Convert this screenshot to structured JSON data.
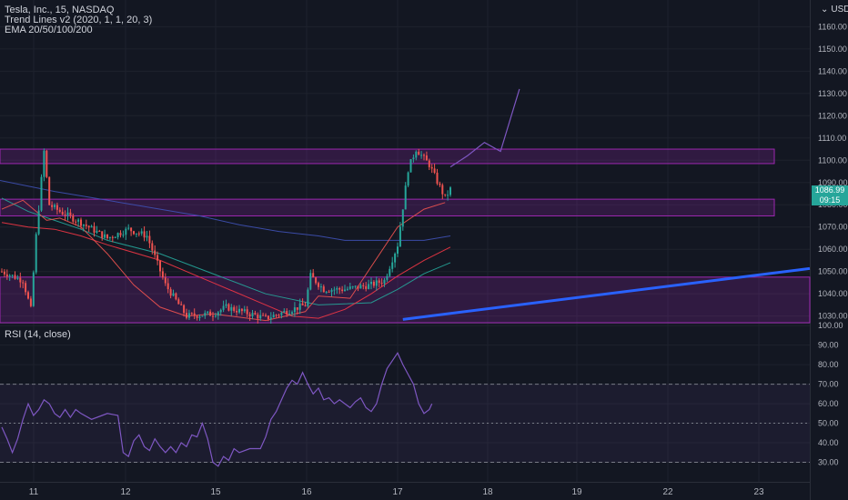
{
  "legend": {
    "symbol_line": "Tesla, Inc., 15, NASDAQ",
    "indicator1": "Trend Lines v2 (2020, 1, 1, 20, 3)",
    "indicator2": "EMA 20/50/100/200"
  },
  "currency": "USD",
  "last_price": {
    "price": "1086.99",
    "countdown": "09:15"
  },
  "rsi_label": "RSI (14, close)",
  "colors": {
    "background": "#131722",
    "grid": "#1e222d",
    "up": "#26a69a",
    "down": "#ef5350",
    "zone": "#9c27b0",
    "trendline": "#2962ff",
    "projection": "#7e57c2",
    "ema20": "#ef5350",
    "ema50": "#f23645",
    "ema100": "#26a69a",
    "ema200": "#3f51b5",
    "rsi": "#7e57c2"
  },
  "chart_data": [
    {
      "type": "candlestick",
      "title": "Tesla, Inc., 15, NASDAQ",
      "price_ticks": [
        1030,
        1040,
        1050,
        1060,
        1070,
        1080,
        1090,
        1100,
        1110,
        1120,
        1130,
        1140,
        1150,
        1160
      ],
      "price_tick_labels": [
        "1030.00",
        "1040.00",
        "1050.00",
        "1060.00",
        "1070.00",
        "1080.00",
        "1090.00",
        "1100.00",
        "1110.00",
        "1120.00",
        "1130.00",
        "1140.00",
        "1150.00",
        "1160.00"
      ],
      "ylim": [
        1027,
        1172
      ],
      "x_tick_labels": [
        "11",
        "12",
        "15",
        "16",
        "17",
        "18",
        "19",
        "22",
        "23"
      ],
      "last_price": 1086.99,
      "zones": [
        {
          "low": 1098.5,
          "high": 1105
        },
        {
          "low": 1075,
          "high": 1082.5
        },
        {
          "low": 1027,
          "high": 1047.5
        }
      ],
      "projection": [
        [
          0,
          1097
        ],
        [
          18,
          1102
        ],
        [
          36,
          1108
        ],
        [
          53,
          1104
        ],
        [
          73,
          1132
        ]
      ],
      "trendline": {
        "start_index": 152,
        "start_price": 1028.5,
        "end_slope_per_bar": 0.1483
      },
      "ema_series": [
        {
          "key": "ema200",
          "points": [
            [
              -1,
              1091
            ],
            [
              20,
              1086
            ],
            [
              40,
              1082
            ],
            [
              60,
              1078
            ],
            [
              75,
              1075
            ],
            [
              90,
              1071
            ],
            [
              105,
              1068
            ],
            [
              120,
              1066
            ],
            [
              130,
              1064
            ],
            [
              140,
              1064
            ],
            [
              150,
              1064
            ],
            [
              160,
              1064
            ],
            [
              170,
              1066
            ]
          ]
        },
        {
          "key": "ema100",
          "points": [
            [
              0,
              1083
            ],
            [
              10,
              1077
            ],
            [
              20,
              1073
            ],
            [
              30,
              1069
            ],
            [
              40,
              1064
            ],
            [
              60,
              1058
            ],
            [
              80,
              1049
            ],
            [
              100,
              1040
            ],
            [
              120,
              1035
            ],
            [
              140,
              1036
            ],
            [
              150,
              1042
            ],
            [
              160,
              1049
            ],
            [
              170,
              1054
            ]
          ]
        },
        {
          "key": "ema50",
          "points": [
            [
              0,
              1072
            ],
            [
              10,
              1070
            ],
            [
              20,
              1069
            ],
            [
              30,
              1066
            ],
            [
              40,
              1062
            ],
            [
              60,
              1055
            ],
            [
              80,
              1045
            ],
            [
              100,
              1035
            ],
            [
              110,
              1030
            ],
            [
              120,
              1029
            ],
            [
              130,
              1033
            ],
            [
              140,
              1040
            ],
            [
              150,
              1048
            ],
            [
              160,
              1055
            ],
            [
              170,
              1061
            ]
          ]
        },
        {
          "key": "ema20",
          "points": [
            [
              0,
              1078
            ],
            [
              8,
              1082
            ],
            [
              17,
              1073
            ],
            [
              22,
              1074
            ],
            [
              30,
              1070
            ],
            [
              40,
              1058
            ],
            [
              50,
              1044
            ],
            [
              60,
              1034
            ],
            [
              70,
              1030
            ],
            [
              80,
              1031
            ],
            [
              100,
              1028
            ],
            [
              115,
              1032
            ],
            [
              120,
              1039
            ],
            [
              132,
              1038
            ],
            [
              150,
              1070
            ],
            [
              160,
              1078
            ],
            [
              168,
              1081
            ]
          ]
        }
      ],
      "candle_path": [
        [
          0,
          1050
        ],
        [
          8,
          1046
        ],
        [
          11,
          1033
        ],
        [
          13,
          1066
        ],
        [
          16,
          1104
        ],
        [
          18,
          1080
        ],
        [
          22,
          1077
        ],
        [
          30,
          1072
        ],
        [
          40,
          1065
        ],
        [
          48,
          1069
        ],
        [
          55,
          1066
        ],
        [
          62,
          1044
        ],
        [
          70,
          1030
        ],
        [
          80,
          1031
        ],
        [
          85,
          1034
        ],
        [
          100,
          1029
        ],
        [
          115,
          1035
        ],
        [
          117,
          1048
        ],
        [
          122,
          1042
        ],
        [
          130,
          1042
        ],
        [
          140,
          1044
        ],
        [
          145,
          1046
        ],
        [
          150,
          1062
        ],
        [
          154,
          1096
        ],
        [
          157,
          1105
        ],
        [
          162,
          1098
        ],
        [
          168,
          1083
        ],
        [
          170,
          1087
        ]
      ]
    },
    {
      "type": "line",
      "title": "RSI (14, close)",
      "ticks": [
        30,
        40,
        50,
        60,
        70,
        80,
        90,
        100
      ],
      "tick_labels": [
        "30.00",
        "40.00",
        "50.00",
        "60.00",
        "70.00",
        "80.00",
        "90.00",
        "100.00"
      ],
      "ylim": [
        20,
        101
      ],
      "bands": [
        30,
        50,
        70
      ],
      "points": [
        [
          0,
          48
        ],
        [
          2,
          42
        ],
        [
          4,
          35
        ],
        [
          6,
          42
        ],
        [
          8,
          52
        ],
        [
          10,
          60
        ],
        [
          12,
          54
        ],
        [
          14,
          57
        ],
        [
          16,
          62
        ],
        [
          18,
          60
        ],
        [
          20,
          55
        ],
        [
          22,
          53
        ],
        [
          24,
          57
        ],
        [
          26,
          53
        ],
        [
          28,
          57
        ],
        [
          30,
          55
        ],
        [
          34,
          52
        ],
        [
          38,
          54
        ],
        [
          40,
          55
        ],
        [
          44,
          54
        ],
        [
          46,
          35
        ],
        [
          48,
          33
        ],
        [
          50,
          41
        ],
        [
          52,
          44
        ],
        [
          54,
          38
        ],
        [
          56,
          36
        ],
        [
          58,
          42
        ],
        [
          60,
          38
        ],
        [
          62,
          35
        ],
        [
          64,
          38
        ],
        [
          66,
          35
        ],
        [
          68,
          40
        ],
        [
          70,
          38
        ],
        [
          72,
          44
        ],
        [
          74,
          43
        ],
        [
          76,
          50
        ],
        [
          78,
          42
        ],
        [
          80,
          30
        ],
        [
          82,
          28
        ],
        [
          84,
          33
        ],
        [
          86,
          31
        ],
        [
          88,
          37
        ],
        [
          90,
          35
        ],
        [
          94,
          37
        ],
        [
          98,
          37
        ],
        [
          100,
          43
        ],
        [
          102,
          52
        ],
        [
          104,
          56
        ],
        [
          106,
          62
        ],
        [
          108,
          68
        ],
        [
          110,
          72
        ],
        [
          112,
          70
        ],
        [
          114,
          76
        ],
        [
          116,
          70
        ],
        [
          118,
          65
        ],
        [
          120,
          68
        ],
        [
          122,
          62
        ],
        [
          124,
          63
        ],
        [
          126,
          60
        ],
        [
          128,
          62
        ],
        [
          130,
          60
        ],
        [
          132,
          58
        ],
        [
          134,
          61
        ],
        [
          136,
          63
        ],
        [
          138,
          58
        ],
        [
          140,
          56
        ],
        [
          142,
          60
        ],
        [
          144,
          70
        ],
        [
          146,
          78
        ],
        [
          148,
          82
        ],
        [
          150,
          86
        ],
        [
          152,
          80
        ],
        [
          154,
          75
        ],
        [
          156,
          70
        ],
        [
          158,
          60
        ],
        [
          160,
          55
        ],
        [
          162,
          57
        ],
        [
          163,
          60
        ]
      ]
    }
  ]
}
